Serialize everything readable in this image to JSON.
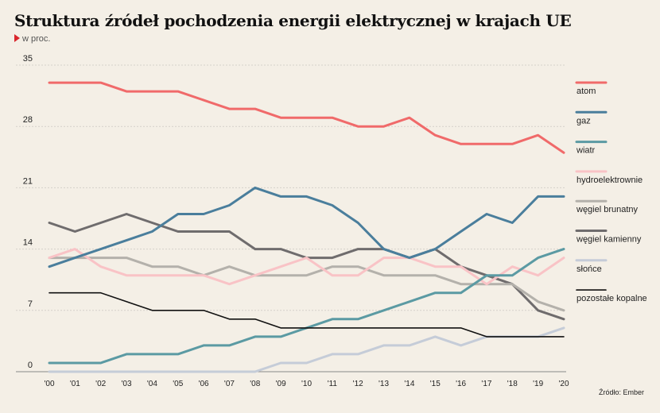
{
  "title": "Struktura źródeł pochodzenia energii elektrycznej w krajach UE",
  "subtitle": "w proc.",
  "source": "Źródło: Ember",
  "chart_data": {
    "type": "line",
    "title": "Struktura źródeł pochodzenia energii elektrycznej w krajach UE",
    "subtitle": "w proc.",
    "x": [
      "'00",
      "'01",
      "'02",
      "'03",
      "'04",
      "'05",
      "'06",
      "'07",
      "'08",
      "'09",
      "'10",
      "'11",
      "'12",
      "'13",
      "'14",
      "'15",
      "'16",
      "'17",
      "'18",
      "'19",
      "'20"
    ],
    "yticks": [
      0,
      7,
      14,
      21,
      28,
      35
    ],
    "ylim": [
      0,
      35
    ],
    "grid": true,
    "legend": "right",
    "series": [
      {
        "name": "atom",
        "color": "#f06a6a",
        "values": [
          33,
          33,
          33,
          32,
          32,
          32,
          31,
          30,
          30,
          29,
          29,
          29,
          28,
          28,
          29,
          27,
          26,
          26,
          26,
          27,
          25
        ]
      },
      {
        "name": "gaz",
        "color": "#4a7e9c",
        "values": [
          12,
          13,
          14,
          15,
          16,
          18,
          18,
          19,
          21,
          20,
          20,
          19,
          17,
          14,
          13,
          14,
          16,
          18,
          17,
          20,
          20
        ]
      },
      {
        "name": "wiatr",
        "color": "#5b9aa3",
        "values": [
          1,
          1,
          1,
          2,
          2,
          2,
          3,
          3,
          4,
          4,
          5,
          6,
          6,
          7,
          8,
          9,
          9,
          11,
          11,
          13,
          14
        ]
      },
      {
        "name": "hydroelektrownie",
        "color": "#f9c3c6",
        "values": [
          13,
          14,
          12,
          11,
          11,
          11,
          11,
          10,
          11,
          12,
          13,
          11,
          11,
          13,
          13,
          12,
          12,
          10,
          12,
          11,
          13
        ]
      },
      {
        "name": "węgiel brunatny",
        "color": "#b4b1ab",
        "values": [
          13,
          13,
          13,
          13,
          12,
          12,
          11,
          12,
          11,
          11,
          11,
          12,
          12,
          11,
          11,
          11,
          10,
          10,
          10,
          8,
          7
        ]
      },
      {
        "name": "węgiel kamienny",
        "color": "#6f6c6d",
        "values": [
          17,
          16,
          17,
          18,
          17,
          16,
          16,
          16,
          14,
          14,
          13,
          13,
          14,
          14,
          13,
          14,
          12,
          11,
          10,
          7,
          6
        ]
      },
      {
        "name": "słońce",
        "color": "#c5ccd8",
        "values": [
          0,
          0,
          0,
          0,
          0,
          0,
          0,
          0,
          0,
          1,
          1,
          2,
          2,
          3,
          3,
          4,
          3,
          4,
          4,
          4,
          5
        ]
      },
      {
        "name": "pozostałe kopalne",
        "color": "#111111",
        "values": [
          9,
          9,
          9,
          8,
          7,
          7,
          7,
          6,
          6,
          5,
          5,
          5,
          5,
          5,
          5,
          5,
          5,
          4,
          4,
          4,
          4
        ]
      }
    ]
  }
}
